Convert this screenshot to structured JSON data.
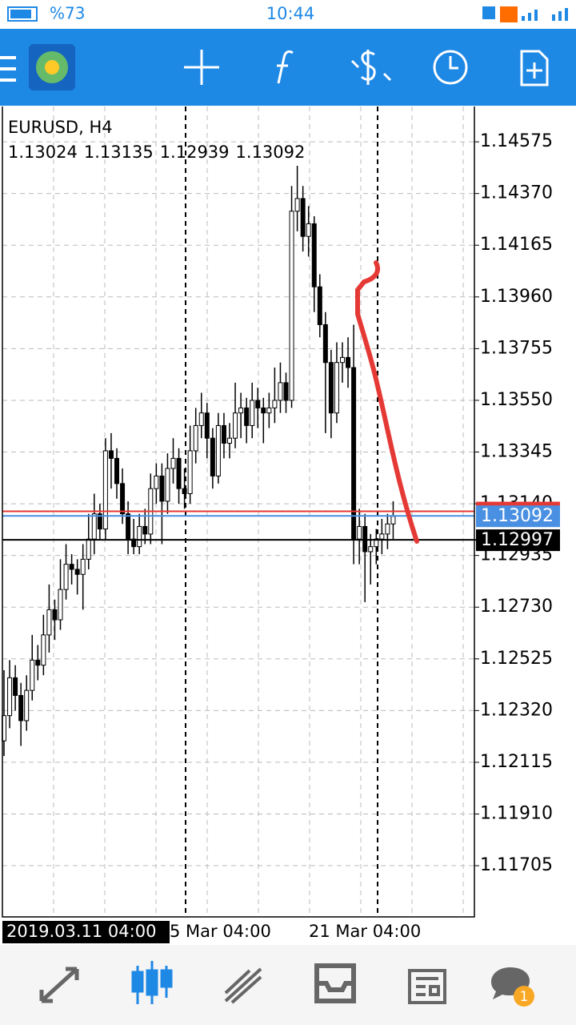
{
  "status_bar": {
    "battery": "%73",
    "time": "10:44"
  },
  "chart": {
    "symbol": "EURUSD, H4",
    "ohlc": [
      1.13024,
      1.13135,
      1.12939,
      1.13092
    ],
    "ylim": [
      1.11502,
      1.14715
    ],
    "yticks": [
      1.14575,
      {
        "value": 1.1437,
        "label": "1.14370"
      },
      1.14165,
      {
        "value": 1.1396,
        "label": "1.13960"
      },
      1.13755,
      {
        "value": 1.1355,
        "label": "1.13550"
      },
      1.13345,
      {
        "value": 1.1314,
        "label": "1.13140"
      },
      1.12935,
      {
        "value": 1.1273,
        "label": "1.12730"
      },
      1.12525,
      {
        "value": 1.1232,
        "label": "1.12320"
      },
      1.12115,
      {
        "value": 1.1191,
        "label": "1.11910"
      },
      1.11705
    ],
    "x_labels": [
      "2019.03.11 04:00",
      "5 Mar 04:00",
      "21 Mar 04:00"
    ],
    "bull_color": "#ffffff",
    "bear_color": "#000000",
    "ask_line": {
      "value": 1.1311,
      "color": "#e53935"
    },
    "bid_line": {
      "value": 1.13092,
      "color": "#4a90e2"
    },
    "level_line": {
      "value": 1.12997,
      "color": "#000000"
    },
    "candles": [
      [
        1.122,
        1.1248,
        1.1214,
        1.123
      ],
      [
        1.123,
        1.1252,
        1.1225,
        1.1245
      ],
      [
        1.1245,
        1.125,
        1.1232,
        1.1238
      ],
      [
        1.1238,
        1.1243,
        1.1218,
        1.1228
      ],
      [
        1.1228,
        1.1246,
        1.1224,
        1.124
      ],
      [
        1.124,
        1.1262,
        1.1236,
        1.1252
      ],
      [
        1.1252,
        1.1258,
        1.1244,
        1.125
      ],
      [
        1.125,
        1.127,
        1.1246,
        1.1262
      ],
      [
        1.1262,
        1.1282,
        1.1255,
        1.1272
      ],
      [
        1.1272,
        1.1276,
        1.126,
        1.1268
      ],
      [
        1.1268,
        1.1292,
        1.1264,
        1.128
      ],
      [
        1.128,
        1.1298,
        1.1276,
        1.129
      ],
      [
        1.129,
        1.1294,
        1.1282,
        1.1288
      ],
      [
        1.1288,
        1.1292,
        1.1278,
        1.1286
      ],
      [
        1.1286,
        1.1298,
        1.1272,
        1.1292
      ],
      [
        1.1292,
        1.131,
        1.1288,
        1.13
      ],
      [
        1.13,
        1.1318,
        1.1294,
        1.131
      ],
      [
        1.131,
        1.1314,
        1.13,
        1.1304
      ],
      [
        1.1304,
        1.134,
        1.13,
        1.1335
      ],
      [
        1.1335,
        1.1342,
        1.132,
        1.1332
      ],
      [
        1.1332,
        1.1336,
        1.1316,
        1.1322
      ],
      [
        1.1322,
        1.1328,
        1.1306,
        1.131
      ],
      [
        1.131,
        1.1315,
        1.1294,
        1.13
      ],
      [
        1.13,
        1.1308,
        1.1294,
        1.1297
      ],
      [
        1.1297,
        1.131,
        1.1294,
        1.1305
      ],
      [
        1.1305,
        1.1312,
        1.1298,
        1.1302
      ],
      [
        1.1302,
        1.1326,
        1.1298,
        1.132
      ],
      [
        1.132,
        1.133,
        1.1314,
        1.1325
      ],
      [
        1.1325,
        1.133,
        1.1298,
        1.1315
      ],
      [
        1.1315,
        1.1334,
        1.131,
        1.1328
      ],
      [
        1.1328,
        1.134,
        1.1322,
        1.1332
      ],
      [
        1.1332,
        1.1336,
        1.1314,
        1.132
      ],
      [
        1.132,
        1.1328,
        1.1312,
        1.1318
      ],
      [
        1.1318,
        1.1345,
        1.1314,
        1.1335
      ],
      [
        1.1335,
        1.1352,
        1.133,
        1.1345
      ],
      [
        1.1345,
        1.1358,
        1.134,
        1.135
      ],
      [
        1.135,
        1.1354,
        1.1332,
        1.134
      ],
      [
        1.134,
        1.1344,
        1.132,
        1.1325
      ],
      [
        1.1325,
        1.135,
        1.1322,
        1.1345
      ],
      [
        1.1345,
        1.135,
        1.1332,
        1.1338
      ],
      [
        1.1338,
        1.1346,
        1.1332,
        1.134
      ],
      [
        1.134,
        1.1362,
        1.1336,
        1.135
      ],
      [
        1.135,
        1.1358,
        1.134,
        1.1352
      ],
      [
        1.1352,
        1.1356,
        1.1338,
        1.1345
      ],
      [
        1.1345,
        1.1362,
        1.134,
        1.1355
      ],
      [
        1.1355,
        1.136,
        1.1344,
        1.1352
      ],
      [
        1.1352,
        1.1356,
        1.1338,
        1.135
      ],
      [
        1.135,
        1.1358,
        1.1344,
        1.1352
      ],
      [
        1.1352,
        1.1368,
        1.1346,
        1.1355
      ],
      [
        1.1355,
        1.137,
        1.135,
        1.1362
      ],
      [
        1.1362,
        1.1366,
        1.135,
        1.1355
      ],
      [
        1.1355,
        1.144,
        1.1352,
        1.143
      ],
      [
        1.143,
        1.1448,
        1.1422,
        1.1435
      ],
      [
        1.1435,
        1.144,
        1.1414,
        1.142
      ],
      [
        1.142,
        1.1432,
        1.1412,
        1.1425
      ],
      [
        1.1425,
        1.1428,
        1.139,
        1.14
      ],
      [
        1.14,
        1.1405,
        1.138,
        1.1385
      ],
      [
        1.1385,
        1.139,
        1.1342,
        1.137
      ],
      [
        1.137,
        1.1375,
        1.134,
        1.135
      ],
      [
        1.135,
        1.1378,
        1.1346,
        1.137
      ],
      [
        1.137,
        1.1378,
        1.1362,
        1.1372
      ],
      [
        1.1372,
        1.138,
        1.136,
        1.1368
      ],
      [
        1.1368,
        1.1385,
        1.129,
        1.13
      ],
      [
        1.13,
        1.1312,
        1.129,
        1.1305
      ],
      [
        1.1305,
        1.131,
        1.1275,
        1.1295
      ],
      [
        1.1295,
        1.1302,
        1.1282,
        1.1297
      ],
      [
        1.1297,
        1.1304,
        1.129,
        1.13
      ],
      [
        1.13,
        1.1308,
        1.1294,
        1.1302
      ],
      [
        1.1302,
        1.131,
        1.1296,
        1.1306
      ],
      [
        1.1306,
        1.1315,
        1.13,
        1.1309
      ]
    ]
  },
  "bottom_nav": {
    "badge": 1
  }
}
